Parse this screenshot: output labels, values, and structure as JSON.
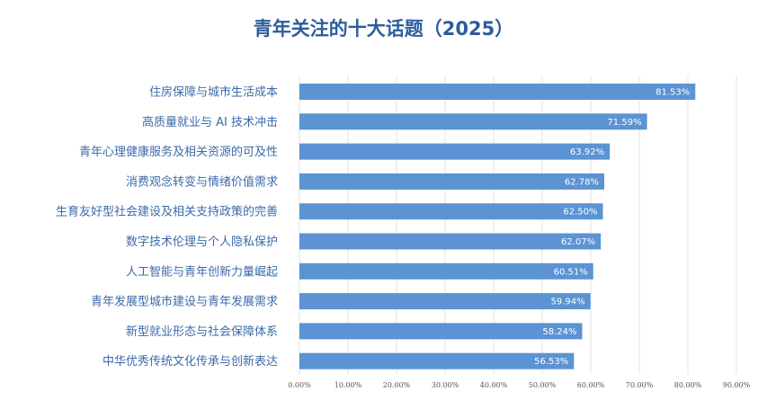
{
  "chart_data": {
    "type": "bar",
    "orientation": "horizontal",
    "title": "青年关注的十大话题（2025）",
    "categories": [
      "住房保障与城市生活成本",
      "高质量就业与 AI 技术冲击",
      "青年心理健康服务及相关资源的可及性",
      "消费观念转变与情绪价值需求",
      "生育友好型社会建设及相关支持政策的完善",
      "数字技术伦理与个人隐私保护",
      "人工智能与青年创新力量崛起",
      "青年发展型城市建设与青年发展需求",
      "新型就业形态与社会保障体系",
      "中华优秀传统文化传承与创新表达"
    ],
    "values": [
      81.53,
      71.59,
      63.92,
      62.78,
      62.5,
      62.07,
      60.51,
      59.94,
      58.24,
      56.53
    ],
    "value_labels": [
      "81.53%",
      "71.59%",
      "63.92%",
      "62.78%",
      "62.50%",
      "62.07%",
      "60.51%",
      "59.94%",
      "58.24%",
      "56.53%"
    ],
    "xlim": [
      0,
      90
    ],
    "x_ticks": [
      "0.00%",
      "10.00%",
      "20.00%",
      "30.00%",
      "40.00%",
      "50.00%",
      "60.00%",
      "70.00%",
      "80.00%",
      "90.00%"
    ],
    "grid": "vertical",
    "colors": {
      "bar": "#5b93d3",
      "title": "#2e5c9c",
      "category_label": "#3d6aa8",
      "grid": "#e3e3e3"
    }
  }
}
